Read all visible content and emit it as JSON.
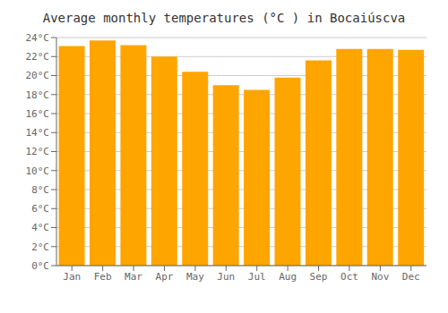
{
  "chart_data": {
    "type": "bar",
    "title": "Average monthly temperatures (°C ) in Bocaiúscva",
    "categories": [
      "Jan",
      "Feb",
      "Mar",
      "Apr",
      "May",
      "Jun",
      "Jul",
      "Aug",
      "Sep",
      "Oct",
      "Nov",
      "Dec"
    ],
    "values": [
      23.1,
      23.7,
      23.2,
      22.0,
      20.4,
      19.0,
      18.5,
      19.8,
      21.6,
      22.8,
      22.8,
      22.7
    ],
    "color": "#FFA500",
    "ylim": [
      0,
      24
    ],
    "yticks": [
      {
        "value": 0,
        "label": "0°C"
      },
      {
        "value": 2,
        "label": "2°C"
      },
      {
        "value": 4,
        "label": "4°C"
      },
      {
        "value": 6,
        "label": "6°C"
      },
      {
        "value": 8,
        "label": "8°C"
      },
      {
        "value": 10,
        "label": "10°C"
      },
      {
        "value": 12,
        "label": "12°C"
      },
      {
        "value": 14,
        "label": "14°C"
      },
      {
        "value": 16,
        "label": "16°C"
      },
      {
        "value": 18,
        "label": "18°C"
      },
      {
        "value": 20,
        "label": "20°C"
      },
      {
        "value": 22,
        "label": "22°C"
      },
      {
        "value": 24,
        "label": "24°C"
      }
    ],
    "grid": true
  }
}
